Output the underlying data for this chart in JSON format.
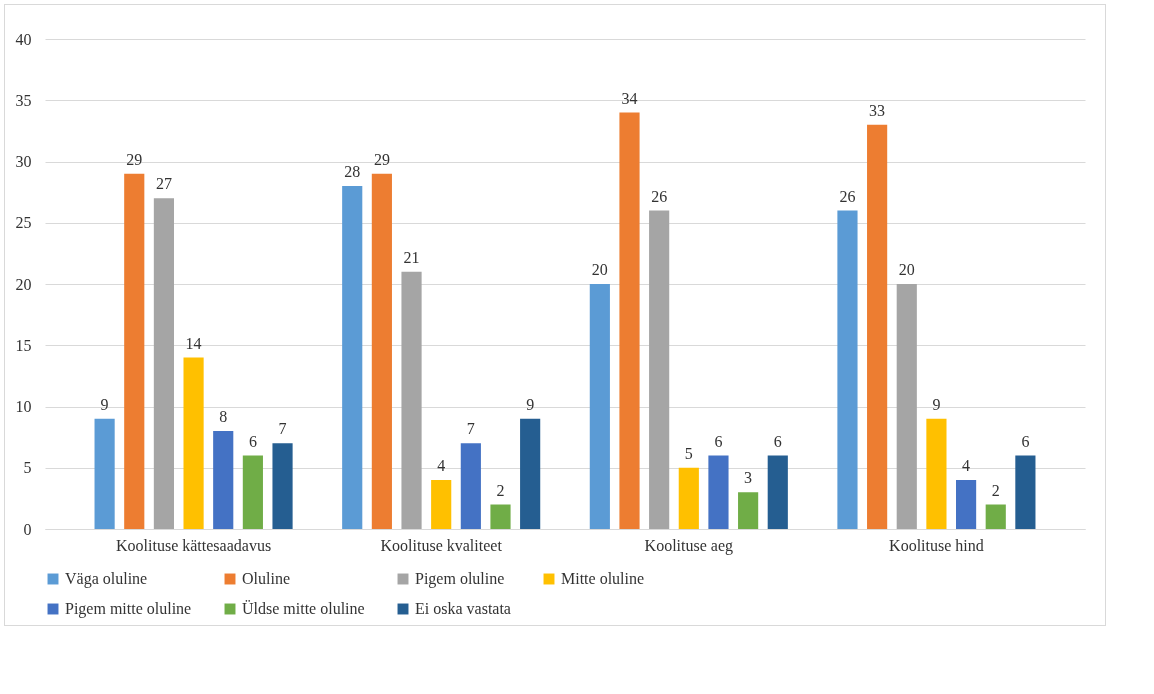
{
  "chart_data": {
    "type": "bar",
    "categories": [
      "Koolituse kättesaadavus",
      "Koolituse kvaliteet",
      "Koolituse aeg",
      "Koolituse hind"
    ],
    "series": [
      {
        "name": "Väga oluline",
        "color": "#5b9bd5",
        "values": [
          9,
          28,
          20,
          26
        ]
      },
      {
        "name": "Oluline",
        "color": "#ed7d31",
        "values": [
          29,
          29,
          34,
          33
        ]
      },
      {
        "name": "Pigem oluline",
        "color": "#a5a5a5",
        "values": [
          27,
          21,
          26,
          20
        ]
      },
      {
        "name": "Mitte oluline",
        "color": "#ffc000",
        "values": [
          14,
          4,
          5,
          9
        ]
      },
      {
        "name": "Pigem mitte oluline",
        "color": "#4472c4",
        "values": [
          8,
          7,
          6,
          4
        ]
      },
      {
        "name": "Üldse mitte oluline",
        "color": "#70ad47",
        "values": [
          6,
          2,
          3,
          2
        ]
      },
      {
        "name": "Ei oska vastata",
        "color": "#255e91",
        "values": [
          7,
          9,
          6,
          6
        ]
      }
    ],
    "ylim": [
      0,
      40
    ],
    "yticks": [
      0,
      5,
      10,
      15,
      20,
      25,
      30,
      35,
      40
    ],
    "grid": "y",
    "data_labels": true,
    "legend": "bottom"
  }
}
